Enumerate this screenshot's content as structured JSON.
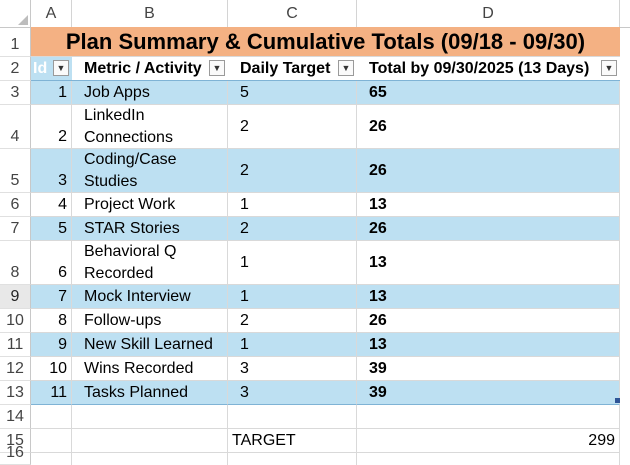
{
  "columns": [
    "A",
    "B",
    "C",
    "D"
  ],
  "title": "Plan Summary & Cumulative Totals (09/18 - 09/30)",
  "headers": {
    "id": "Id",
    "metric": "Metric / Activity",
    "daily": "Daily Target",
    "total": "Total by 09/30/2025 (13 Days)"
  },
  "rows": [
    {
      "num": "1",
      "metric": "Job Apps",
      "daily": "5",
      "total": "65"
    },
    {
      "num": "2",
      "metric": "LinkedIn Connections",
      "daily": "2",
      "total": "26"
    },
    {
      "num": "3",
      "metric": "Coding/Case Studies",
      "daily": "2",
      "total": "26"
    },
    {
      "num": "4",
      "metric": "Project Work",
      "daily": "1",
      "total": "13"
    },
    {
      "num": "5",
      "metric": "STAR Stories",
      "daily": "2",
      "total": "26"
    },
    {
      "num": "6",
      "metric": "Behavioral Q Recorded",
      "daily": "1",
      "total": "13"
    },
    {
      "num": "7",
      "metric": "Mock Interview",
      "daily": "1",
      "total": "13"
    },
    {
      "num": "8",
      "metric": "Follow-ups",
      "daily": "2",
      "total": "26"
    },
    {
      "num": "9",
      "metric": "New Skill Learned",
      "daily": "1",
      "total": "13"
    },
    {
      "num": "10",
      "metric": "Wins Recorded",
      "daily": "3",
      "total": "39"
    },
    {
      "num": "11",
      "metric": "Tasks Planned",
      "daily": "3",
      "total": "39"
    }
  ],
  "row_numbers": [
    "1",
    "2",
    "3",
    "4",
    "5",
    "6",
    "7",
    "8",
    "9",
    "10",
    "11",
    "12",
    "13",
    "14",
    "15",
    "16"
  ],
  "footer": {
    "label": "TARGET",
    "value": "299"
  },
  "colors": {
    "title_bg": "#f4b183",
    "band": "#bde0f2",
    "border_accent": "#7fb3d5"
  }
}
